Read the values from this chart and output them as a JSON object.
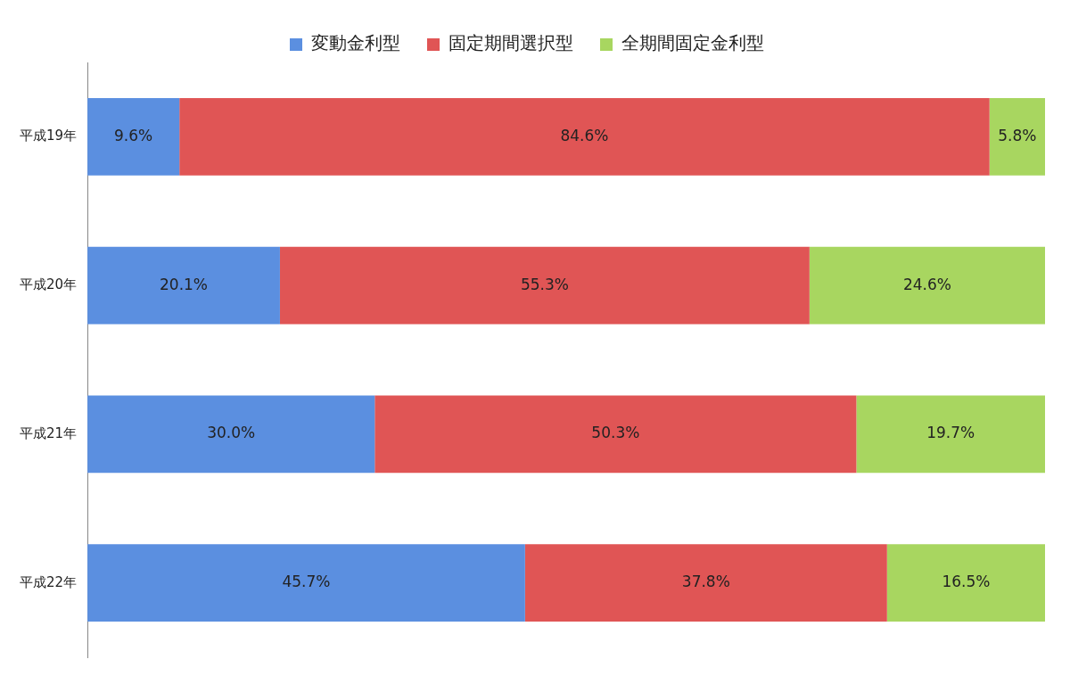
{
  "chart_data": {
    "type": "bar",
    "orientation": "horizontal",
    "stacked": true,
    "categories": [
      "平成19年",
      "平成20年",
      "平成21年",
      "平成22年"
    ],
    "series": [
      {
        "name": "変動金利型",
        "color": "#5b8fe0",
        "values": [
          9.6,
          20.1,
          30.0,
          45.7
        ],
        "value_labels": [
          "9.6%",
          "20.1%",
          "30.0%",
          "45.7%"
        ]
      },
      {
        "name": "固定期間選択型",
        "color": "#e05555",
        "values": [
          84.6,
          55.3,
          50.3,
          37.8
        ],
        "value_labels": [
          "84.6%",
          "55.3%",
          "50.3%",
          "37.8%"
        ]
      },
      {
        "name": "全期間固定金利型",
        "color": "#a8d660",
        "values": [
          5.8,
          24.6,
          19.7,
          16.5
        ],
        "value_labels": [
          "5.8%",
          "24.6%",
          "19.7%",
          "16.5%"
        ]
      }
    ],
    "xlim": [
      0,
      100
    ],
    "tick_labels": "y",
    "legend": "top"
  }
}
